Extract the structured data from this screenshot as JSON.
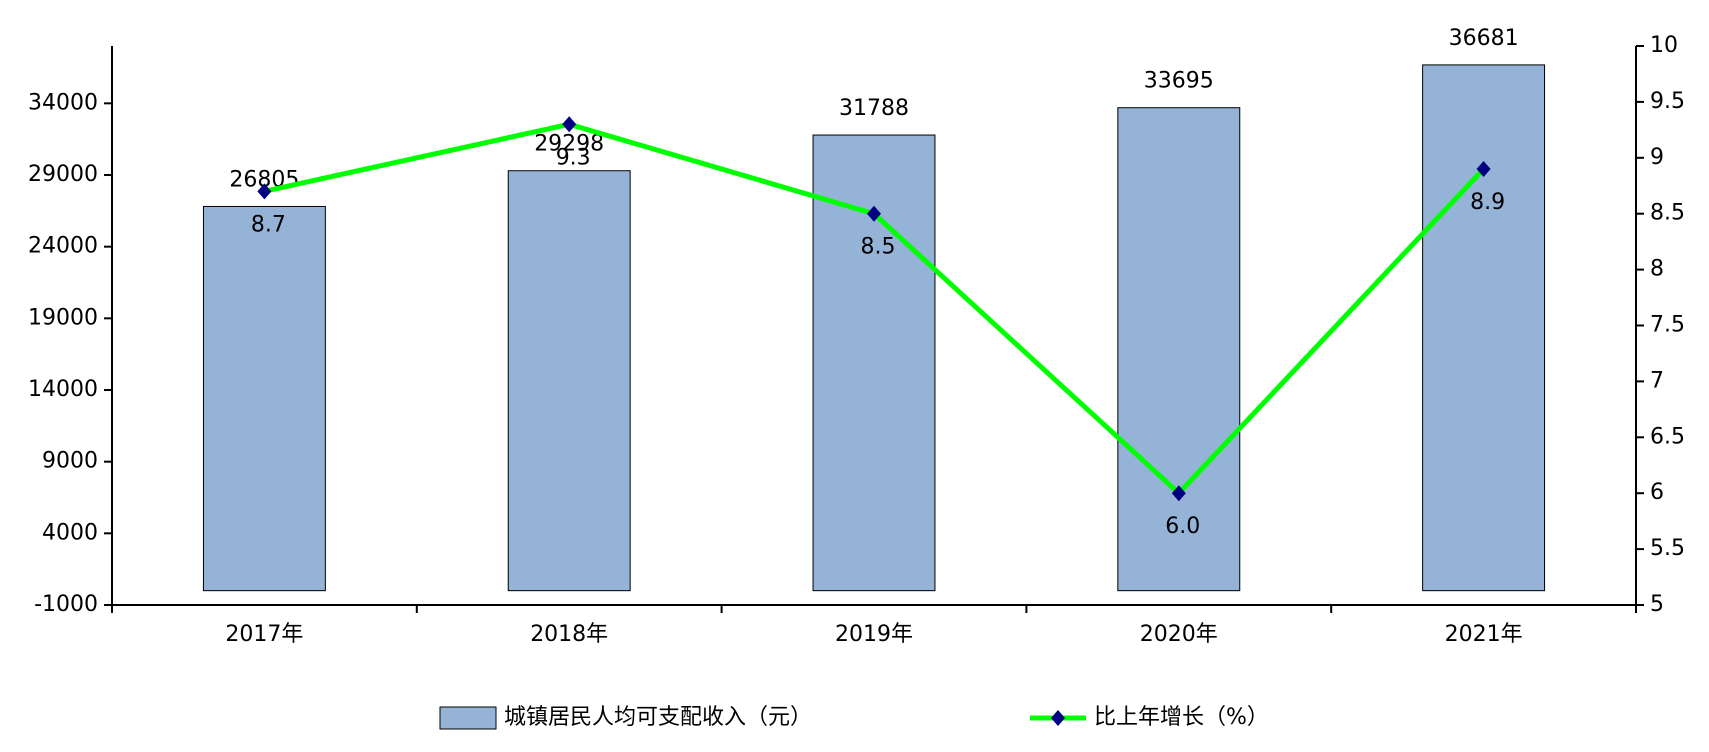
{
  "chart_data": {
    "type": "combo",
    "categories": [
      "2017年",
      "2018年",
      "2019年",
      "2020年",
      "2021年"
    ],
    "series": [
      {
        "name": "城镇居民人均可支配收入（元）",
        "type": "bar",
        "color": "#95b3d7",
        "values": [
          26805,
          29298,
          31788,
          33695,
          36681
        ]
      },
      {
        "name": "比上年增长（%）",
        "type": "line",
        "axis": "y2",
        "color": "#00ff00",
        "marker_color": "#000080",
        "values": [
          8.7,
          9.3,
          8.5,
          6.0,
          8.9
        ],
        "value_labels": [
          "8.7",
          "9.3",
          "8.5",
          "6.0",
          "8.9"
        ]
      }
    ],
    "ylim": [
      -1000,
      38000
    ],
    "yticks": [
      -1000,
      4000,
      9000,
      14000,
      19000,
      24000,
      29000,
      34000
    ],
    "y2lim": [
      5,
      10
    ],
    "y2ticks": [
      5,
      5.5,
      6,
      6.5,
      7,
      7.5,
      8,
      8.5,
      9,
      9.5,
      10
    ],
    "legend": "bottom"
  }
}
